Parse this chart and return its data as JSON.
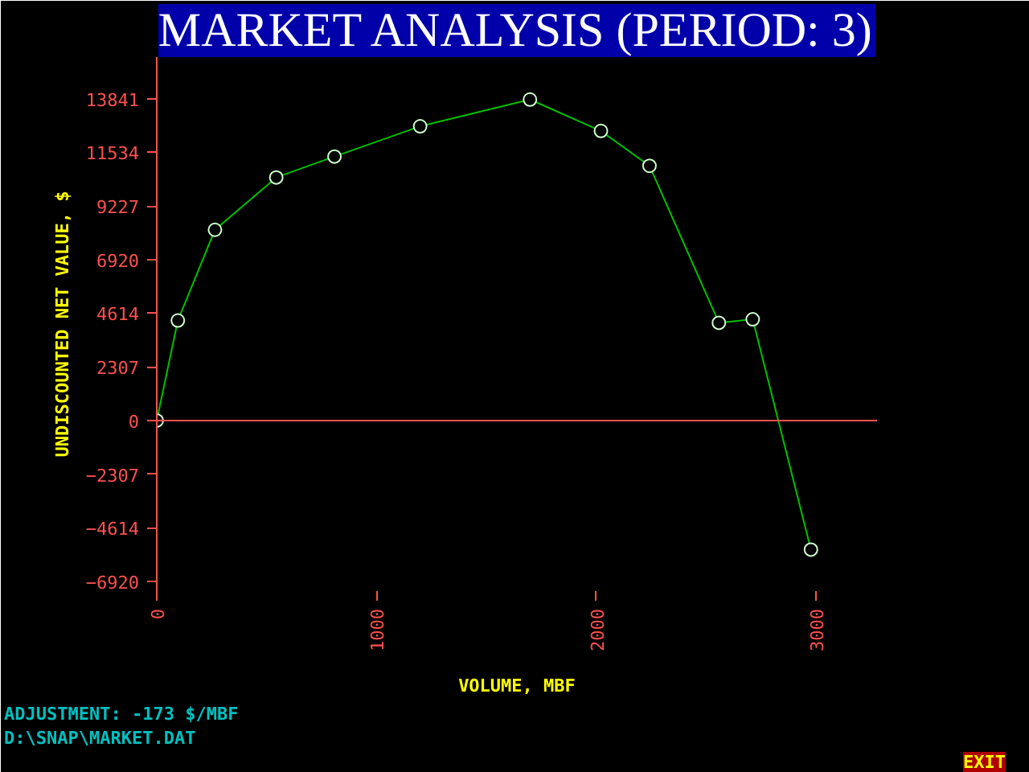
{
  "chart_data": {
    "type": "line",
    "title": "MARKET ANALYSIS (PERIOD: 3)",
    "xlabel": "VOLUME, MBF",
    "ylabel": "UNDISCOUNTED NET VALUE, $",
    "x": [
      0,
      96,
      265,
      544,
      809,
      1199,
      1699,
      2022,
      2243,
      2559,
      2713,
      2978
    ],
    "series": [
      {
        "color": "#00c000",
        "values": [
          0,
          4300,
          8200,
          10450,
          11350,
          12650,
          13800,
          12450,
          10950,
          4200,
          4350,
          -5550
        ]
      }
    ],
    "ref_lines": [
      {
        "axis": "y",
        "value": 0,
        "color": "#ff5050"
      }
    ],
    "xlim": [
      0,
      3279
    ],
    "ylim": [
      -7334,
      15625
    ],
    "xticks": [
      0,
      1000,
      2000,
      3000
    ],
    "yticks": [
      -6920,
      -4614,
      -2307,
      0,
      2307,
      4614,
      6920,
      9227,
      11534,
      13841
    ],
    "marker": "circle",
    "grid": false,
    "annotations": [
      "ADJUSTMENT: -173 $/MBF",
      "D:\\SNAP\\MARKET.DAT",
      "EXIT"
    ]
  }
}
